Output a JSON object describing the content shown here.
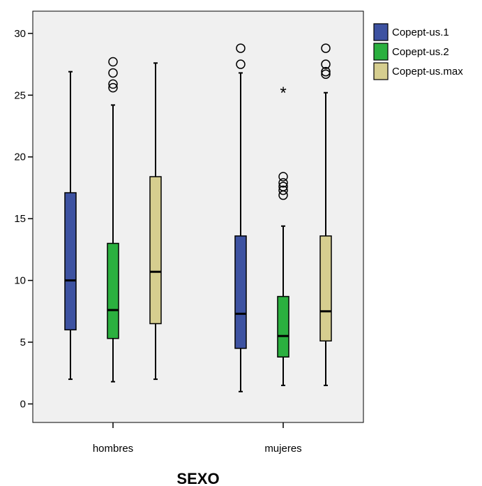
{
  "chart_data": {
    "type": "boxplot",
    "title": "",
    "xlabel": "SEXO",
    "ylabel": "",
    "ylim": [
      -1.5,
      31.8
    ],
    "yticks": [
      0,
      5,
      10,
      15,
      20,
      25,
      30
    ],
    "grid": false,
    "legend_position": "top-right",
    "categories": [
      "hombres",
      "mujeres"
    ],
    "series": [
      {
        "name": "Copept-us.1",
        "color": "#3D52A1",
        "boxes": [
          {
            "min": 2.0,
            "q1": 6.0,
            "median": 10.0,
            "q3": 17.1,
            "max": 26.9,
            "outliers": [],
            "extremes": []
          },
          {
            "min": 1.0,
            "q1": 4.5,
            "median": 7.3,
            "q3": 13.6,
            "max": 26.8,
            "outliers": [
              27.5,
              28.8
            ],
            "extremes": []
          }
        ]
      },
      {
        "name": "Copept-us.2",
        "color": "#2BB03F",
        "boxes": [
          {
            "min": 1.8,
            "q1": 5.3,
            "median": 7.6,
            "q3": 13.0,
            "max": 24.2,
            "outliers": [
              25.6,
              25.9,
              26.8,
              27.7
            ],
            "extremes": []
          },
          {
            "min": 1.5,
            "q1": 3.8,
            "median": 5.5,
            "q3": 8.7,
            "max": 14.4,
            "outliers": [
              16.9,
              17.3,
              17.6,
              17.9,
              18.4
            ],
            "extremes": [
              25.3
            ]
          }
        ]
      },
      {
        "name": "Copept-us.max",
        "color": "#D6CE8F",
        "boxes": [
          {
            "min": 2.0,
            "q1": 6.5,
            "median": 10.7,
            "q3": 18.4,
            "max": 27.6,
            "outliers": [],
            "extremes": []
          },
          {
            "min": 1.5,
            "q1": 5.1,
            "median": 7.5,
            "q3": 13.6,
            "max": 25.2,
            "outliers": [
              26.7,
              26.9,
              27.5,
              28.8
            ],
            "extremes": []
          }
        ]
      }
    ]
  }
}
